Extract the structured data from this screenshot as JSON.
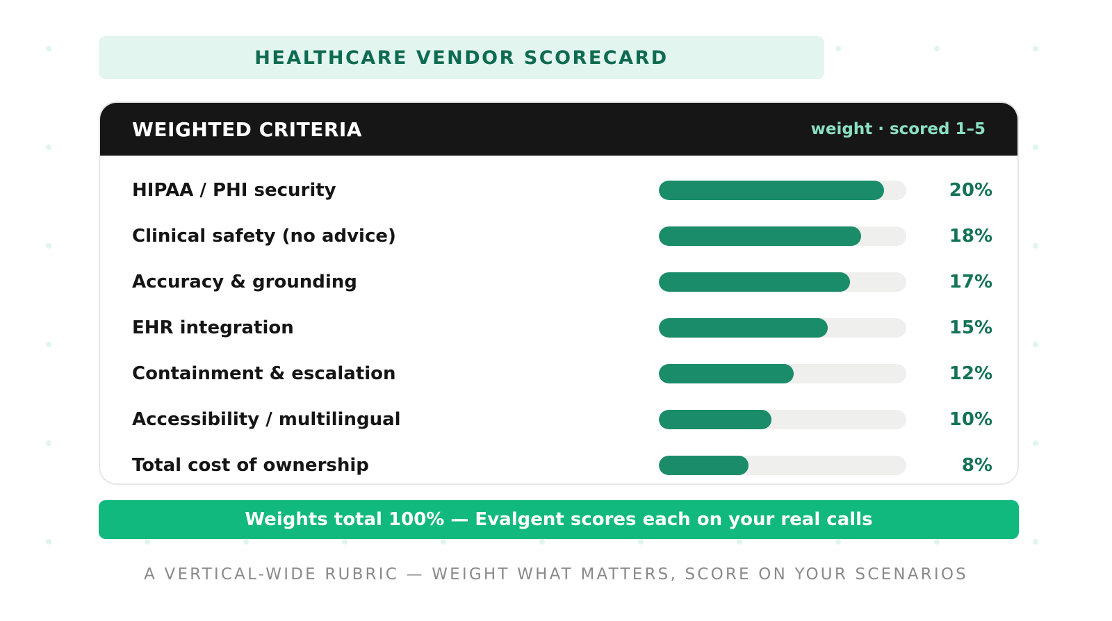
{
  "title": "HEALTHCARE VENDOR SCORECARD",
  "card": {
    "header_title": "WEIGHTED CRITERIA",
    "header_subtitle": "weight · scored 1–5"
  },
  "chart_data": {
    "type": "bar",
    "orientation": "horizontal",
    "categories": [
      "HIPAA / PHI security",
      "Clinical safety (no advice)",
      "Accuracy & grounding",
      "EHR integration",
      "Containment & escalation",
      "Accessibility / multilingual",
      "Total cost of ownership"
    ],
    "values": [
      20,
      18,
      17,
      15,
      12,
      10,
      8
    ],
    "value_labels": [
      "20%",
      "18%",
      "17%",
      "15%",
      "12%",
      "10%",
      "8%"
    ],
    "xlim": [
      0,
      22
    ],
    "bar_color": "#1b8c69",
    "track_color": "#efefed"
  },
  "total_banner": "Weights total 100% — Evalgent scores each on your real calls",
  "footer": "A VERTICAL-WIDE RUBRIC — WEIGHT WHAT MATTERS, SCORE ON YOUR SCENARIOS",
  "colors": {
    "accent": "#12b97e",
    "dark_green": "#0e6b52",
    "header_bg": "#161616"
  }
}
